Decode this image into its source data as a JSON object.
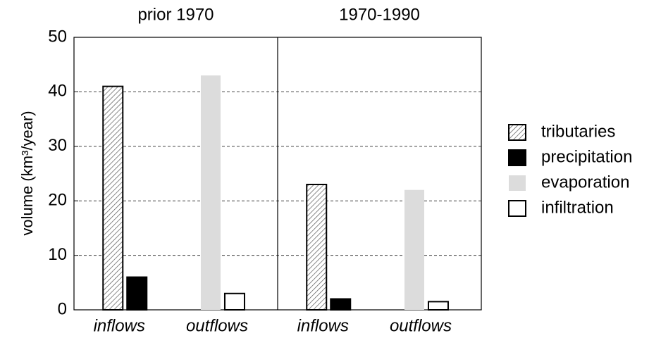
{
  "chart_data": {
    "type": "bar",
    "panel_titles": [
      "prior 1970",
      "1970-1990"
    ],
    "categories": [
      "inflows",
      "outflows",
      "inflows",
      "outflows"
    ],
    "ylabel": "volume (km³/year)",
    "ylim": [
      0,
      50
    ],
    "yticks": [
      0,
      10,
      20,
      30,
      40,
      50
    ],
    "grid": true,
    "legend": "right",
    "series": [
      {
        "name": "tributaries",
        "color": "#555555",
        "pattern": "hatch",
        "edgecolor": "#000000",
        "values": [
          41,
          null,
          23,
          null
        ]
      },
      {
        "name": "precipitation",
        "color": "#000000",
        "edgecolor": "#000000",
        "values": [
          6,
          null,
          2,
          null
        ]
      },
      {
        "name": "evaporation",
        "color": "#dcdcdc",
        "values": [
          null,
          43,
          null,
          22
        ]
      },
      {
        "name": "infiltration",
        "color": "#ffffff",
        "edgecolor": "#000000",
        "values": [
          null,
          3,
          null,
          1.5
        ]
      }
    ]
  }
}
